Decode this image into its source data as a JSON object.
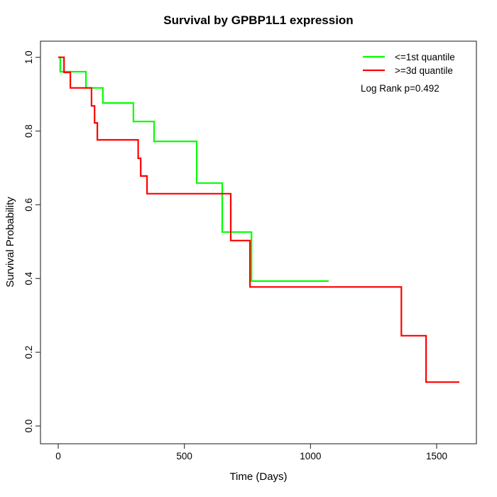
{
  "chart_data": {
    "type": "line",
    "subtype": "kaplan-meier-step",
    "title": "Survival by GPBP1L1 expression",
    "xlabel": "Time (Days)",
    "ylabel": "Survival Probability",
    "x_ticks": [
      0,
      500,
      1000,
      1500
    ],
    "x_tick_labels": [
      "0",
      "500",
      "1000",
      "1500"
    ],
    "y_ticks": [
      0.0,
      0.2,
      0.4,
      0.6,
      0.8,
      1.0
    ],
    "y_tick_labels": [
      "0.0",
      "0.2",
      "0.4",
      "0.6",
      "0.8",
      "1.0"
    ],
    "xlim": [
      0,
      1658
    ],
    "ylim": [
      0.0,
      1.0
    ],
    "grid": false,
    "legend_position": "top-right",
    "annotation": "Log Rank p=0.492",
    "series": [
      {
        "name": "<=1st quantile",
        "color": "#00FF00",
        "points": [
          [
            0,
            1.0
          ],
          [
            8,
            0.961
          ],
          [
            110,
            0.917
          ],
          [
            177,
            0.876
          ],
          [
            298,
            0.826
          ],
          [
            380,
            0.772
          ],
          [
            549,
            0.659
          ],
          [
            650,
            0.526
          ],
          [
            766,
            0.393
          ]
        ],
        "end_time": 1072
      },
      {
        "name": ">=3d quantile",
        "color": "#FF0000",
        "points": [
          [
            0,
            1.0
          ],
          [
            23,
            0.959
          ],
          [
            48,
            0.917
          ],
          [
            132,
            0.868
          ],
          [
            144,
            0.822
          ],
          [
            155,
            0.776
          ],
          [
            317,
            0.726
          ],
          [
            327,
            0.678
          ],
          [
            352,
            0.63
          ],
          [
            684,
            0.503
          ],
          [
            760,
            0.377
          ],
          [
            1360,
            0.245
          ],
          [
            1458,
            0.119
          ]
        ],
        "end_time": 1590
      }
    ]
  },
  "colors": {
    "axis": "#3d3d3d",
    "text": "#000000",
    "background": "#ffffff"
  }
}
